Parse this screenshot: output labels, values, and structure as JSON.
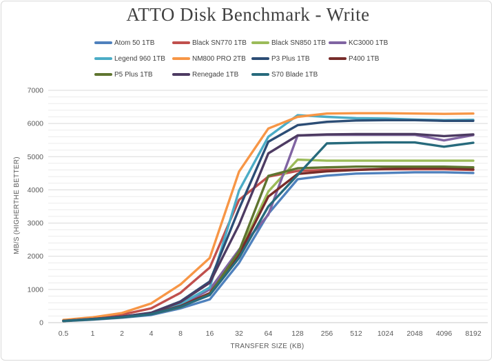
{
  "chart_data": {
    "type": "line",
    "title": "ATTO Disk Benchmark - Write",
    "xlabel": "TRANSFER SIZE (KB)",
    "ylabel": "MB/S (HIGHERTHE BETTER)",
    "categories": [
      "0.5",
      "1",
      "2",
      "4",
      "8",
      "16",
      "32",
      "64",
      "128",
      "256",
      "512",
      "1024",
      "2048",
      "4096",
      "8192"
    ],
    "ylim": [
      0,
      7000
    ],
    "y_ticks": [
      0,
      1000,
      2000,
      3000,
      4000,
      5000,
      6000,
      7000
    ],
    "y_major_unit": 1000,
    "y_minor_unit": 200,
    "grid": "horizontal major + minor, no vertical",
    "legend_position": "top",
    "series": [
      {
        "name": "Atom 50 1TB",
        "color": "#4F81BD",
        "values": [
          45,
          90,
          150,
          230,
          430,
          700,
          1800,
          3280,
          4320,
          4430,
          4490,
          4510,
          4530,
          4530,
          4510
        ]
      },
      {
        "name": "Black SN770 1TB",
        "color": "#C0504D",
        "values": [
          70,
          140,
          240,
          430,
          900,
          1660,
          3700,
          4400,
          4570,
          4600,
          4610,
          4620,
          4620,
          4620,
          4600
        ]
      },
      {
        "name": "Black SN850 1TB",
        "color": "#9BBB59",
        "values": [
          50,
          100,
          165,
          260,
          490,
          870,
          2100,
          3950,
          4910,
          4880,
          4880,
          4880,
          4880,
          4880,
          4880
        ]
      },
      {
        "name": "KC3000 1TB",
        "color": "#8064A2",
        "values": [
          55,
          105,
          170,
          270,
          520,
          1000,
          2200,
          3250,
          5640,
          5660,
          5660,
          5660,
          5660,
          5490,
          5650
        ]
      },
      {
        "name": "Legend 960 1TB",
        "color": "#4BACC6",
        "values": [
          55,
          110,
          175,
          285,
          560,
          1060,
          3980,
          5600,
          6250,
          6200,
          6160,
          6150,
          6120,
          6100,
          6110
        ]
      },
      {
        "name": "NM800 PRO 2TB",
        "color": "#F79646",
        "values": [
          80,
          160,
          290,
          580,
          1150,
          1950,
          4550,
          5850,
          6200,
          6300,
          6310,
          6310,
          6300,
          6290,
          6300
        ]
      },
      {
        "name": "P3 Plus 1TB",
        "color": "#2C4D75",
        "values": [
          55,
          110,
          180,
          300,
          640,
          1240,
          3430,
          5450,
          5950,
          6050,
          6090,
          6100,
          6100,
          6080,
          6080
        ]
      },
      {
        "name": "P400 1TB",
        "color": "#772C2A",
        "values": [
          50,
          100,
          165,
          265,
          500,
          890,
          2050,
          3800,
          4480,
          4560,
          4600,
          4630,
          4650,
          4650,
          4620
        ]
      },
      {
        "name": "P5 Plus 1TB",
        "color": "#5F7530",
        "values": [
          50,
          100,
          160,
          255,
          470,
          850,
          2150,
          4420,
          4650,
          4680,
          4700,
          4700,
          4700,
          4700,
          4680
        ]
      },
      {
        "name": "Renegade 1TB",
        "color": "#4D3B62",
        "values": [
          55,
          110,
          180,
          295,
          620,
          1200,
          2950,
          5100,
          5640,
          5670,
          5680,
          5680,
          5680,
          5620,
          5670
        ]
      },
      {
        "name": "S70 Blade 1TB",
        "color": "#276A7C",
        "values": [
          50,
          100,
          162,
          255,
          480,
          830,
          1950,
          3500,
          4450,
          5400,
          5420,
          5430,
          5430,
          5300,
          5420
        ]
      }
    ],
    "style_colors": {
      "title_text": "#404040",
      "axis_text": "#595959",
      "legend_text": "#3f3f3f",
      "major_gridline": "#d9d9d9",
      "minor_gridline": "#ebebeb",
      "baseline": "#c9c9c9",
      "frame_border": "#d9d9d9",
      "background": "#ffffff"
    }
  }
}
